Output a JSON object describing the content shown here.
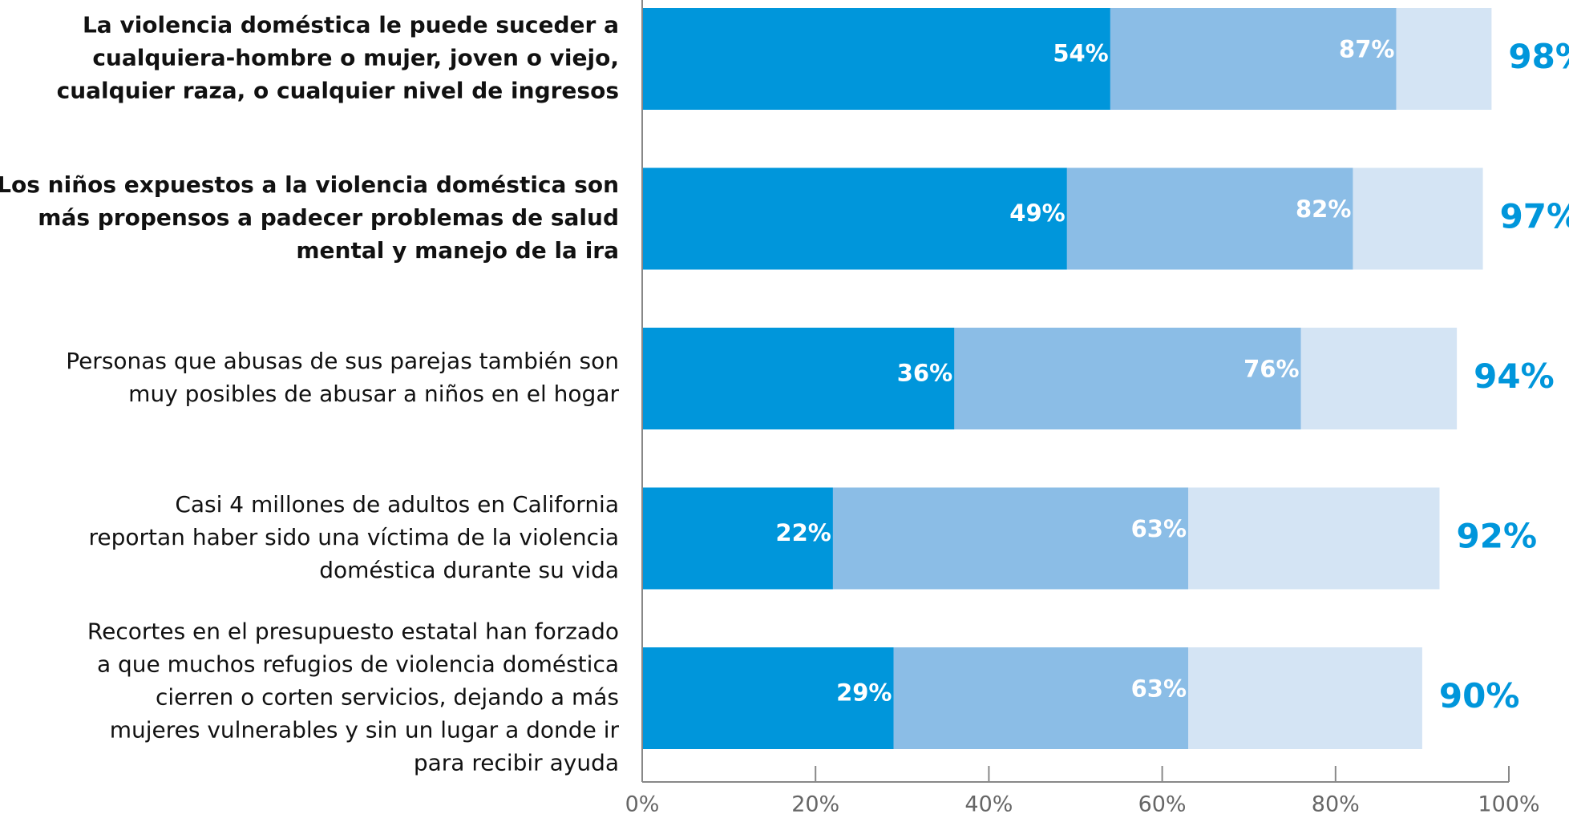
{
  "chart_data": {
    "type": "overlapping-bar",
    "orientation": "horizontal",
    "categories": [
      "La violencia doméstica le puede suceder a\ncualquiera-hombre o mujer, joven o viejo,\ncualquier raza, o cualquier nivel de ingresos",
      "Los niños expuestos a la violencia doméstica son\nmás propensos a padecer problemas de salud\nmental y manejo de la ira",
      "Personas que abusas de sus parejas también son\nmuy posibles de abusar a niños en el hogar",
      "Casi 4 millones de adultos en California\nreportan haber sido una víctima de la violencia\ndoméstica durante su vida",
      "Recortes en el presupuesto estatal han forzado\na que muchos refugios de violencia doméstica\ncierren o corten servicios, dejando a más\nmujeres vulnerables y sin un lugar a donde ir\npara recibir ayuda"
    ],
    "bold_categories": [
      true,
      true,
      false,
      false,
      false
    ],
    "series": [
      {
        "color": "#d4e4f4",
        "values": [
          98,
          97,
          94,
          92,
          90
        ],
        "value_labels": [
          "98%",
          "97%",
          "94%",
          "92%",
          "90%"
        ],
        "label_color": "#0096db",
        "label_position": "outside"
      },
      {
        "color": "#8bbde6",
        "values": [
          87,
          82,
          76,
          63,
          63
        ],
        "value_labels": [
          "87%",
          "82%",
          "76%",
          "63%",
          "63%"
        ],
        "label_color": "#ffffff",
        "label_position": "inside-end"
      },
      {
        "color": "#0096db",
        "values": [
          54,
          49,
          36,
          22,
          29
        ],
        "value_labels": [
          "54%",
          "49%",
          "36%",
          "22%",
          "29%"
        ],
        "label_color": "#ffffff",
        "label_position": "inside-end"
      }
    ],
    "xlim": [
      0,
      100
    ],
    "xticks": [
      {
        "value": 0,
        "label": "0%"
      },
      {
        "value": 20,
        "label": "20%"
      },
      {
        "value": 40,
        "label": "40%"
      },
      {
        "value": 60,
        "label": "60%"
      },
      {
        "value": 80,
        "label": "80%"
      },
      {
        "value": 100,
        "label": "100%"
      }
    ]
  }
}
